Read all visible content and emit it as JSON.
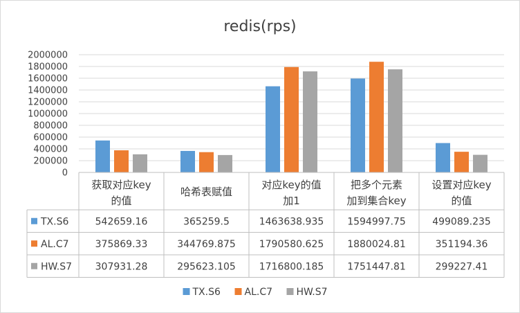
{
  "chart_data": {
    "type": "bar",
    "title": "redis(rps)",
    "categories": [
      [
        "获取对应key",
        "的值"
      ],
      [
        "哈希表赋值"
      ],
      [
        "对应key的值",
        "加1"
      ],
      [
        "把多个元素",
        "加到集合key"
      ],
      [
        "设置对应key",
        "的值"
      ]
    ],
    "series": [
      {
        "name": "TX.S6",
        "color": "#5b9bd5",
        "values": [
          542659.16,
          365259.5,
          1463638.935,
          1594997.75,
          499089.235
        ],
        "labels": [
          "542659.16",
          "365259.5",
          "1463638.935",
          "1594997.75",
          "499089.235"
        ]
      },
      {
        "name": "AL.C7",
        "color": "#ed7d31",
        "values": [
          375869.33,
          344769.875,
          1790580.625,
          1880024.81,
          351194.36
        ],
        "labels": [
          "375869.33",
          "344769.875",
          "1790580.625",
          "1880024.81",
          "351194.36"
        ]
      },
      {
        "name": "HW.S7",
        "color": "#a5a5a5",
        "values": [
          307931.28,
          295623.105,
          1716800.185,
          1751447.81,
          299227.41
        ],
        "labels": [
          "307931.28",
          "295623.105",
          "1716800.185",
          "1751447.81",
          "299227.41"
        ]
      }
    ],
    "yticks": [
      "0",
      "200000",
      "400000",
      "600000",
      "800000",
      "1000000",
      "1200000",
      "1400000",
      "1600000",
      "1800000",
      "2000000"
    ],
    "ylim": [
      0,
      2000000
    ],
    "grid": true,
    "data_table": true,
    "legend": "bottom"
  }
}
